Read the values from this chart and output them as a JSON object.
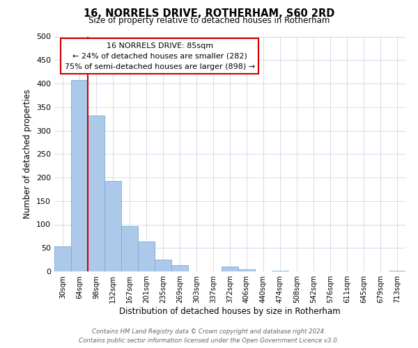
{
  "title": "16, NORRELS DRIVE, ROTHERHAM, S60 2RD",
  "subtitle": "Size of property relative to detached houses in Rotherham",
  "xlabel": "Distribution of detached houses by size in Rotherham",
  "ylabel": "Number of detached properties",
  "bar_labels": [
    "30sqm",
    "64sqm",
    "98sqm",
    "132sqm",
    "167sqm",
    "201sqm",
    "235sqm",
    "269sqm",
    "303sqm",
    "337sqm",
    "372sqm",
    "406sqm",
    "440sqm",
    "474sqm",
    "508sqm",
    "542sqm",
    "576sqm",
    "611sqm",
    "645sqm",
    "679sqm",
    "713sqm"
  ],
  "bar_values": [
    53,
    407,
    332,
    193,
    97,
    63,
    25,
    14,
    0,
    0,
    10,
    5,
    0,
    1,
    0,
    0,
    0,
    0,
    0,
    0,
    2
  ],
  "bar_color": "#adc9e9",
  "bar_edge_color": "#7aaad4",
  "property_line_x": 1.5,
  "annotation_title": "16 NORRELS DRIVE: 85sqm",
  "annotation_line1": "← 24% of detached houses are smaller (282)",
  "annotation_line2": "75% of semi-detached houses are larger (898) →",
  "annotation_box_facecolor": "#ffffff",
  "annotation_box_edgecolor": "#cc0000",
  "line_color": "#cc0000",
  "ylim": [
    0,
    500
  ],
  "yticks": [
    0,
    50,
    100,
    150,
    200,
    250,
    300,
    350,
    400,
    450,
    500
  ],
  "footer1": "Contains HM Land Registry data © Crown copyright and database right 2024.",
  "footer2": "Contains public sector information licensed under the Open Government Licence v3.0.",
  "background_color": "#ffffff",
  "grid_color": "#ccd6e8"
}
